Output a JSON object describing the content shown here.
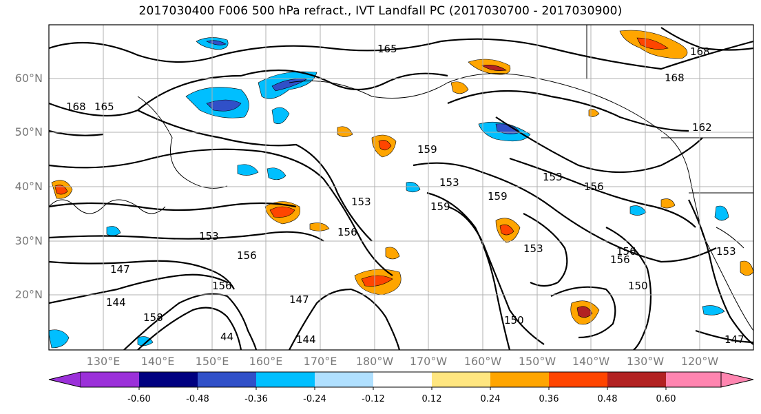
{
  "title": "2017030400 F006 500 hPa refract., IVT Landfall PC (2017030700 - 2017030900)",
  "map": {
    "lat_labels": [
      "60°N",
      "50°N",
      "40°N",
      "30°N",
      "20°N"
    ],
    "lon_labels": [
      "130°E",
      "140°E",
      "150°E",
      "160°E",
      "170°E",
      "180°W",
      "170°W",
      "160°W",
      "150°W",
      "140°W",
      "130°W",
      "120°W"
    ],
    "grid": true
  },
  "contour_labels": [
    "165",
    "168",
    "168",
    "168",
    "165",
    "162",
    "159",
    "153",
    "153",
    "156",
    "159",
    "153",
    "156",
    "153",
    "156",
    "147",
    "144",
    "153",
    "159",
    "156",
    "156",
    "150",
    "153",
    "156",
    "147",
    "144",
    "147",
    "150",
    "158",
    "44"
  ],
  "colorbar": {
    "ticks": [
      "-0.60",
      "-0.48",
      "-0.36",
      "-0.24",
      "-0.12",
      "0.12",
      "0.24",
      "0.36",
      "0.48",
      "0.60"
    ],
    "colors": {
      "below": "#9b30d9",
      "bins": [
        "#000080",
        "#3050c8",
        "#00bfff",
        "#b0e0ff",
        "#ffffff",
        "#ffe680",
        "#ffa500",
        "#ff4500",
        "#b22222"
      ],
      "above": "#ff85b0"
    }
  }
}
